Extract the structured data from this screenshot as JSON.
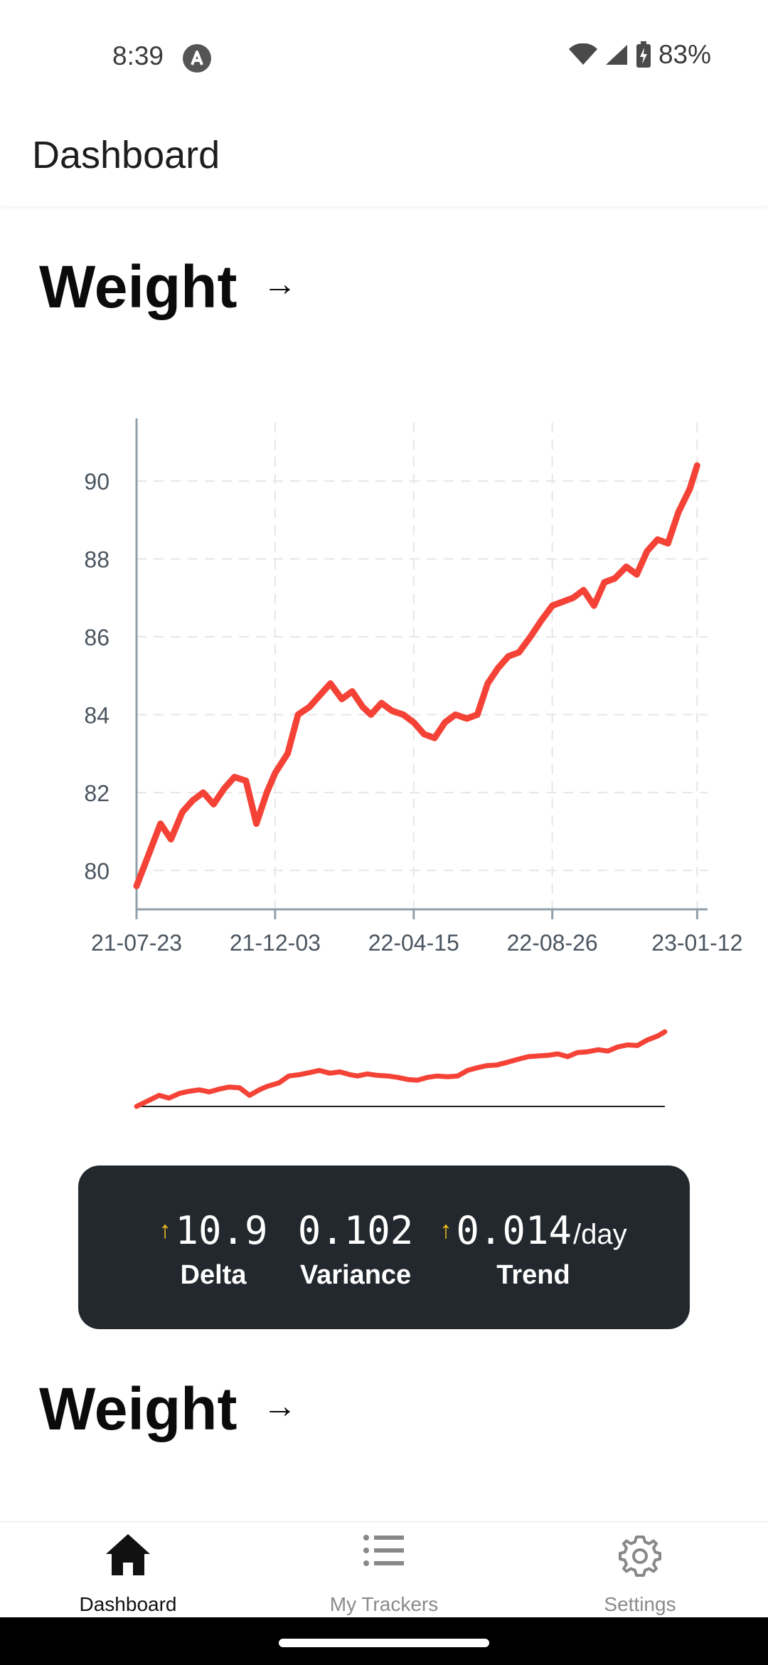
{
  "status_bar": {
    "time": "8:39",
    "battery": "83%",
    "icons": [
      "app-notification-icon",
      "wifi-icon",
      "signal-icon",
      "battery-icon"
    ]
  },
  "app_bar": {
    "title": "Dashboard"
  },
  "sections": [
    {
      "title": "Weight",
      "arrow": "→"
    },
    {
      "title": "Weight",
      "arrow": "→"
    }
  ],
  "chart_data": {
    "type": "line",
    "title": "",
    "xlabel": "",
    "ylabel": "",
    "x_ticks": [
      "21-07-23",
      "21-12-03",
      "22-04-15",
      "22-08-26",
      "23-01-12"
    ],
    "y_ticks": [
      80,
      82,
      84,
      86,
      88,
      90
    ],
    "ylim": [
      79,
      91.5
    ],
    "xlim": [
      "2021-07-23",
      "2023-01-22"
    ],
    "grid": true,
    "color": "#f44336",
    "series": [
      {
        "x": [
          "2021-07-23",
          "2021-08-05",
          "2021-08-15",
          "2021-08-25",
          "2021-09-05",
          "2021-09-15",
          "2021-09-25",
          "2021-10-05",
          "2021-10-15",
          "2021-10-25",
          "2021-11-05",
          "2021-11-15",
          "2021-11-25",
          "2021-12-03",
          "2021-12-15",
          "2021-12-25",
          "2022-01-05",
          "2022-01-15",
          "2022-01-25",
          "2022-02-05",
          "2022-02-15",
          "2022-02-25",
          "2022-03-05",
          "2022-03-15",
          "2022-03-25",
          "2022-04-05",
          "2022-04-15",
          "2022-04-25",
          "2022-05-05",
          "2022-05-15",
          "2022-05-25",
          "2022-06-05",
          "2022-06-15",
          "2022-06-25",
          "2022-07-05",
          "2022-07-15",
          "2022-07-25",
          "2022-08-05",
          "2022-08-15",
          "2022-08-26",
          "2022-09-05",
          "2022-09-15",
          "2022-09-25",
          "2022-10-05",
          "2022-10-15",
          "2022-10-25",
          "2022-11-05",
          "2022-11-15",
          "2022-11-25",
          "2022-12-05",
          "2022-12-15",
          "2022-12-25",
          "2023-01-05",
          "2023-01-12"
        ],
        "y": [
          79.6,
          80.5,
          81.2,
          80.8,
          81.5,
          81.8,
          82.0,
          81.7,
          82.1,
          82.4,
          82.3,
          81.2,
          82.0,
          82.5,
          83.0,
          84.0,
          84.2,
          84.5,
          84.8,
          84.4,
          84.6,
          84.2,
          84.0,
          84.3,
          84.1,
          84.0,
          83.8,
          83.5,
          83.4,
          83.8,
          84.0,
          83.9,
          84.0,
          84.8,
          85.2,
          85.5,
          85.6,
          86.0,
          86.4,
          86.8,
          86.9,
          87.0,
          87.2,
          86.8,
          87.4,
          87.5,
          87.8,
          87.6,
          88.2,
          88.5,
          88.4,
          89.2,
          89.8,
          90.4
        ]
      }
    ]
  },
  "stats": [
    {
      "arrow": "↑",
      "value": "10.9",
      "unit": "",
      "label": "Delta"
    },
    {
      "arrow": "",
      "value": "0.102",
      "unit": "",
      "label": "Variance"
    },
    {
      "arrow": "↑",
      "value": "0.014",
      "unit": "/day",
      "label": "Trend"
    }
  ],
  "bottom_nav": [
    {
      "label": "Dashboard",
      "icon": "home-icon",
      "active": true
    },
    {
      "label": "My Trackers",
      "icon": "list-icon",
      "active": false
    },
    {
      "label": "Settings",
      "icon": "gear-icon",
      "active": false
    }
  ],
  "colors": {
    "accent": "#f44336",
    "card": "#22282d",
    "trend_arrow": "#f5c518"
  }
}
